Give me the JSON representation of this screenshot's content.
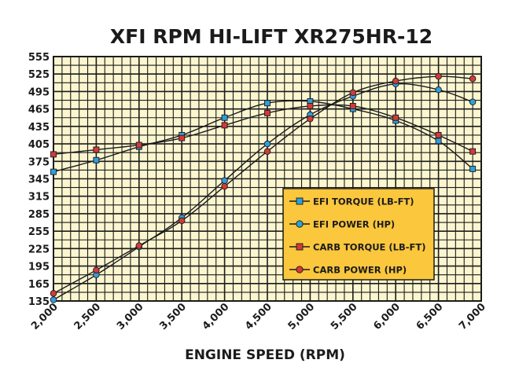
{
  "chart_data": {
    "type": "line",
    "title": "XFI RPM HI-LIFT XR275HR-12",
    "xlabel": "ENGINE SPEED (RPM)",
    "ylabel": "",
    "xlim": [
      2000,
      7000
    ],
    "ylim": [
      135,
      555
    ],
    "x_ticks": [
      "2,000",
      "2,500",
      "3,000",
      "3,500",
      "4,000",
      "4,500",
      "5,000",
      "5,500",
      "6,000",
      "6,500",
      "7,000"
    ],
    "y_ticks": [
      "555",
      "525",
      "495",
      "465",
      "435",
      "405",
      "375",
      "345",
      "315",
      "285",
      "255",
      "225",
      "195",
      "165",
      "135"
    ],
    "grid": true,
    "legend_position": "center-right",
    "x": [
      2000,
      2500,
      3000,
      3500,
      4000,
      4500,
      5000,
      5500,
      6000,
      6500,
      6900
    ],
    "series": [
      {
        "name": "EFI TORQUE (LB-FT)",
        "marker": "square",
        "color": "#2f9fd8",
        "values": [
          357,
          377,
          400,
          420,
          450,
          475,
          478,
          465,
          445,
          410,
          362
        ]
      },
      {
        "name": "EFI POWER (HP)",
        "marker": "circle",
        "color": "#2f9fd8",
        "values": [
          137,
          180,
          228,
          278,
          342,
          405,
          455,
          487,
          508,
          498,
          477
        ]
      },
      {
        "name": "CARB TORQUE (LB-FT)",
        "marker": "square",
        "color": "#d23a3a",
        "values": [
          387,
          395,
          403,
          415,
          437,
          458,
          470,
          470,
          450,
          420,
          392
        ]
      },
      {
        "name": "CARB POWER (HP)",
        "marker": "circle",
        "color": "#d23a3a",
        "values": [
          148,
          188,
          230,
          273,
          332,
          392,
          448,
          493,
          513,
          521,
          517
        ]
      }
    ],
    "colors": {
      "plot_background": "#fbf6cf",
      "grid": "#1b1b1b",
      "legend_background": "#fbc73d"
    }
  }
}
